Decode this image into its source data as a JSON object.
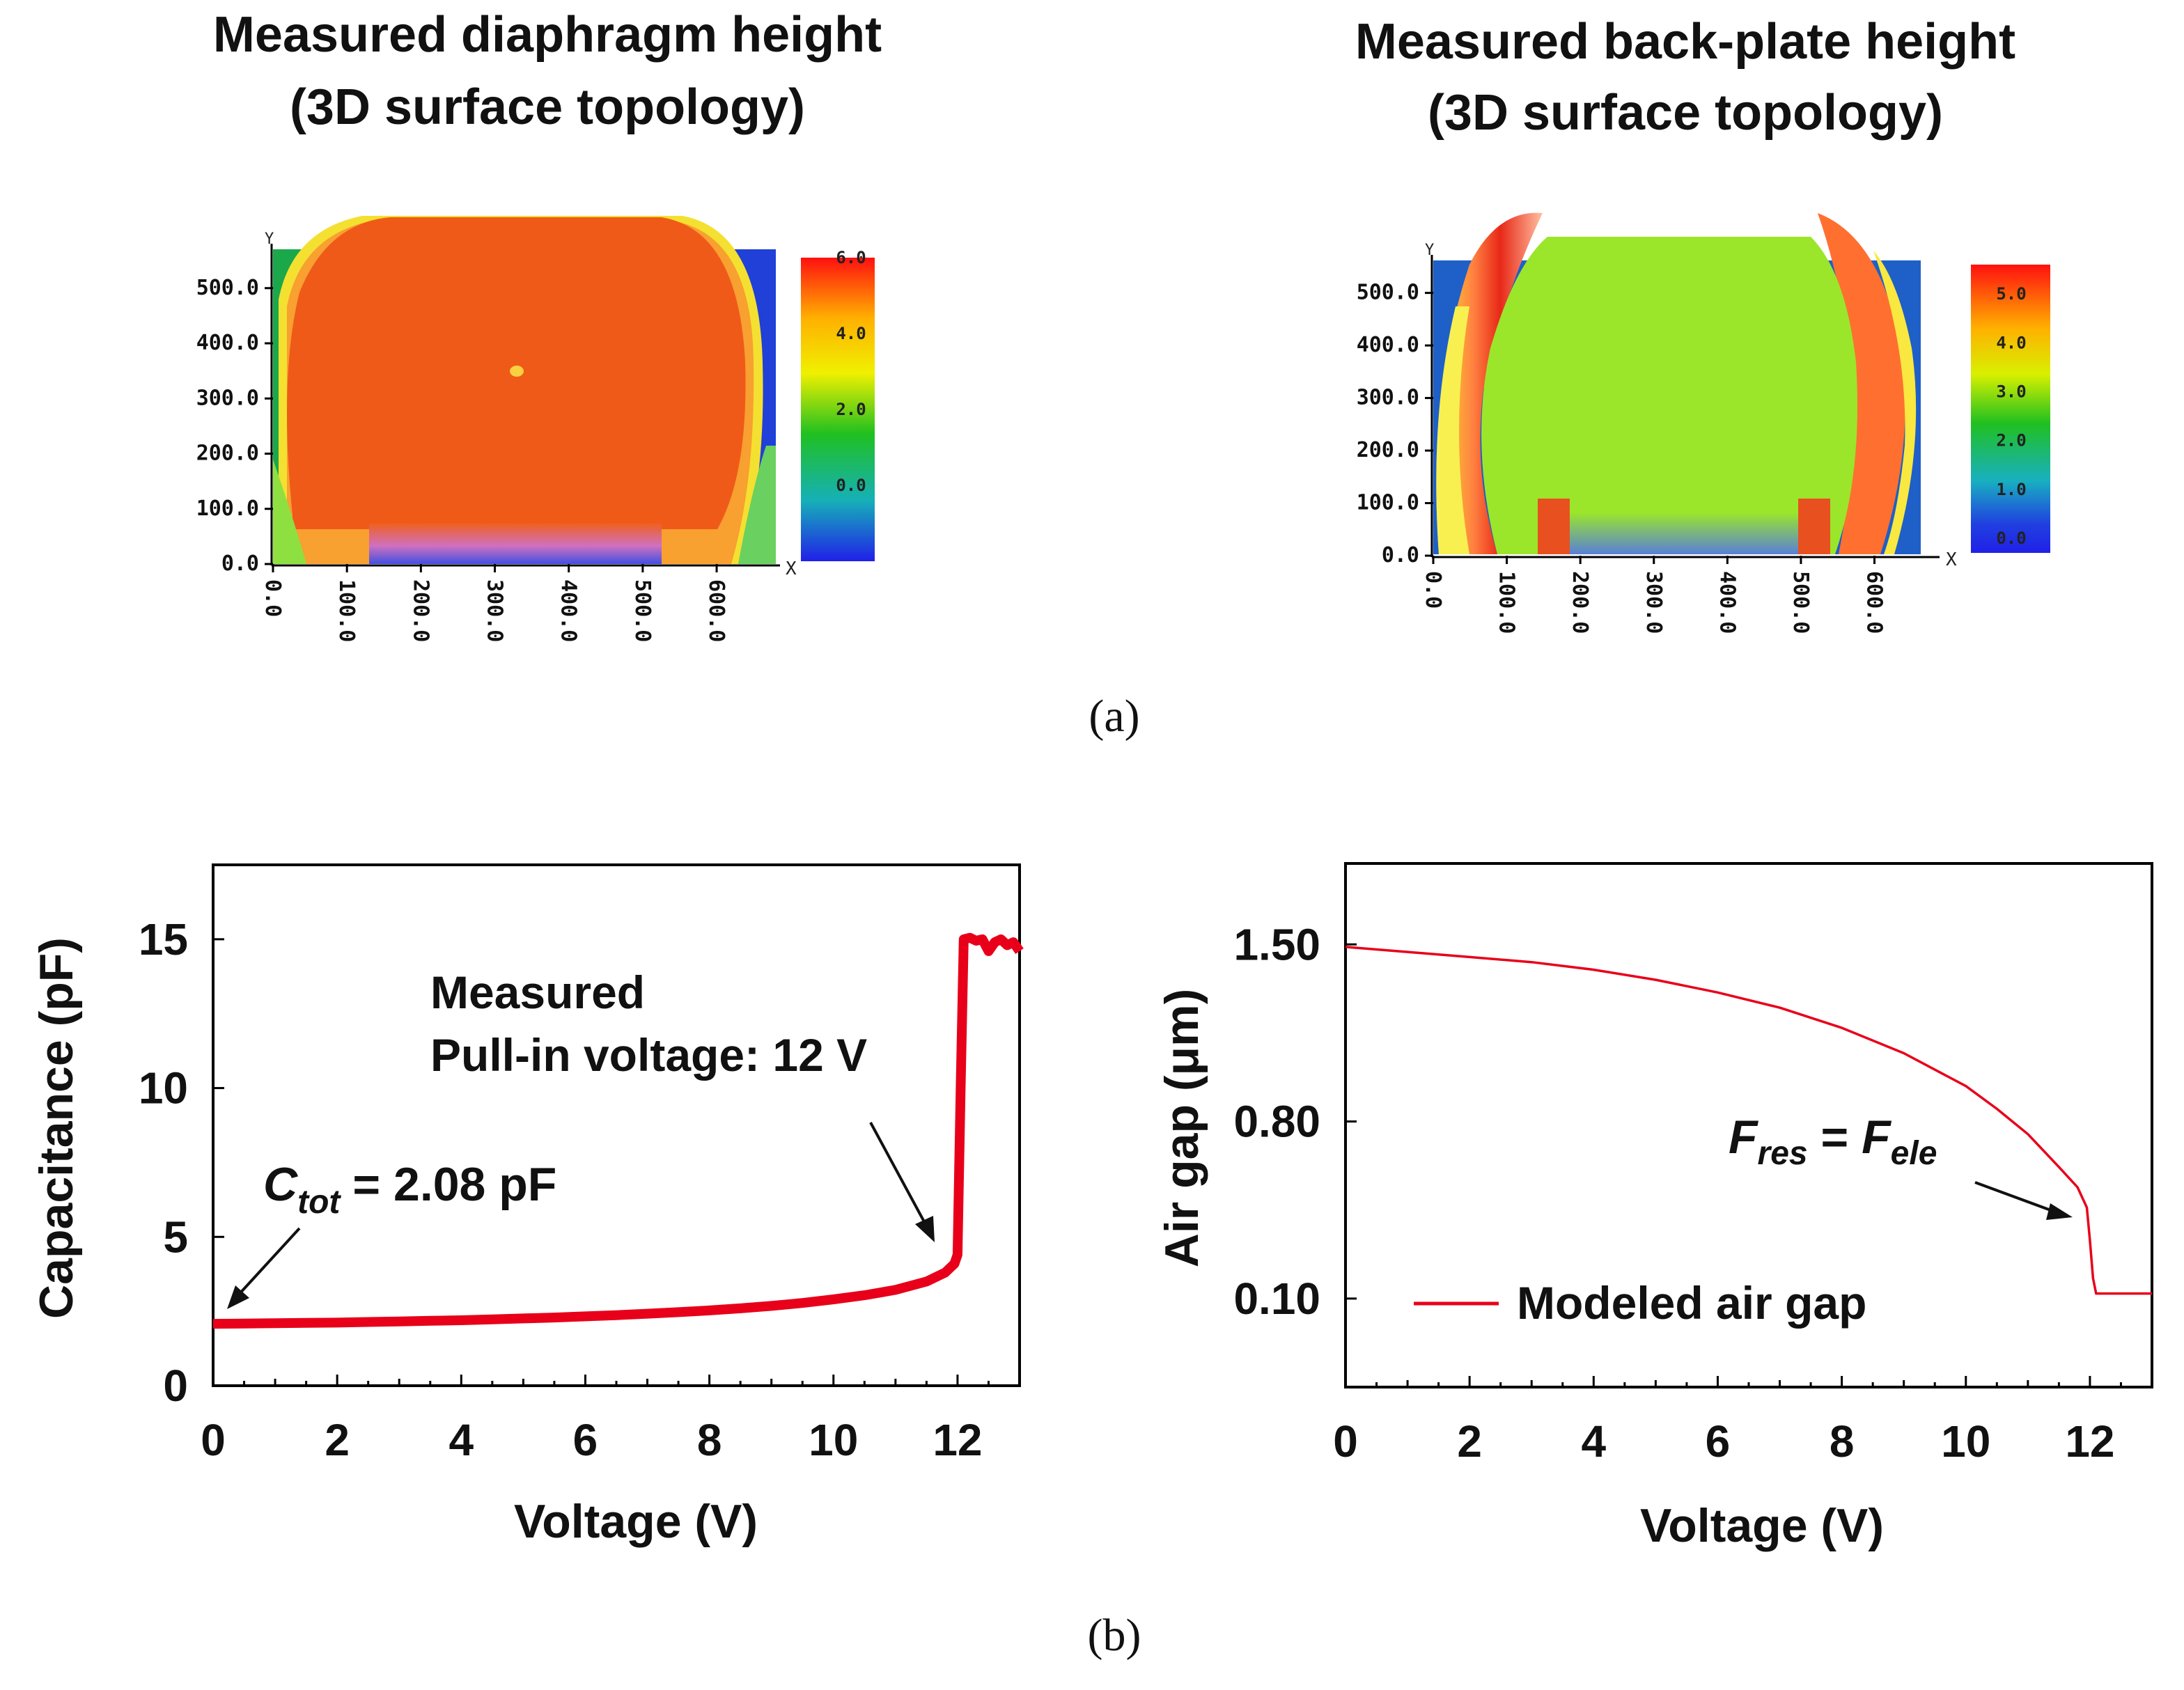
{
  "panel_labels": {
    "a": "(a)",
    "b": "(b)"
  },
  "chart_data": [
    {
      "type": "heatmap",
      "title_line1": "Measured diaphragm height",
      "title_line2": "(3D surface topology)",
      "x_axis_letter": "X",
      "y_axis_letter": "Y",
      "xticks": [
        "0.0",
        "100.0",
        "200.0",
        "300.0",
        "400.0",
        "500.0",
        "600.0"
      ],
      "yticks": [
        "0.0",
        "100.0",
        "200.0",
        "300.0",
        "400.0",
        "500.0"
      ],
      "colorbar_ticks": [
        "0.0",
        "2.0",
        "4.0",
        "6.0"
      ],
      "xlim": [
        0,
        680
      ],
      "ylim": [
        0,
        530
      ],
      "colorbar_range": [
        -2.0,
        6.0
      ],
      "colors": {
        "surface": "#f05a18",
        "background": "#1aa84a",
        "low": "#2040e0"
      }
    },
    {
      "type": "heatmap",
      "title_line1": "Measured back-plate height",
      "title_line2": "(3D surface topology)",
      "x_axis_letter": "X",
      "y_axis_letter": "Y",
      "xticks": [
        "0.0",
        "100.0",
        "200.0",
        "300.0",
        "400.0",
        "500.0",
        "600.0"
      ],
      "yticks": [
        "0.0",
        "100.0",
        "200.0",
        "300.0",
        "400.0",
        "500.0"
      ],
      "colorbar_ticks": [
        "0.0",
        "1.0",
        "2.0",
        "3.0",
        "4.0",
        "5.0"
      ],
      "xlim": [
        0,
        680
      ],
      "ylim": [
        0,
        530
      ],
      "colorbar_range": [
        -0.3,
        5.6
      ],
      "colors": {
        "surface": "#9be62a",
        "background": "#1f5fc8",
        "rim": "#e8301a"
      }
    },
    {
      "type": "line",
      "xlabel": "Voltage (V)",
      "ylabel": "Capacitance (pF)",
      "xlim": [
        0,
        13
      ],
      "ylim": [
        0,
        17.5
      ],
      "xticks": [
        0,
        2,
        4,
        6,
        8,
        10,
        12
      ],
      "yticks": [
        0,
        5,
        10,
        15
      ],
      "color": "#e8001a",
      "annotation_line1": "Measured",
      "annotation_line2": "Pull-in voltage: 12 V",
      "annotation_ctot": "= 2.08 pF",
      "ctot_symbol": "C",
      "ctot_sub": "tot",
      "series": [
        {
          "x": [
            0,
            0.5,
            1,
            1.5,
            2,
            2.5,
            3,
            3.5,
            4,
            4.5,
            5,
            5.5,
            6,
            6.5,
            7,
            7.5,
            8,
            8.5,
            9,
            9.5,
            10,
            10.5,
            11,
            11.5,
            11.8,
            11.95,
            12.0,
            12.05,
            12.1,
            12.2,
            12.3,
            12.4,
            12.5,
            12.6,
            12.7,
            12.8,
            12.9,
            13.0
          ],
          "y": [
            2.08,
            2.09,
            2.1,
            2.11,
            2.12,
            2.14,
            2.16,
            2.18,
            2.2,
            2.23,
            2.26,
            2.29,
            2.33,
            2.37,
            2.42,
            2.47,
            2.53,
            2.6,
            2.68,
            2.78,
            2.9,
            3.04,
            3.22,
            3.5,
            3.8,
            4.1,
            4.4,
            10.0,
            15.0,
            15.05,
            14.95,
            15.0,
            14.6,
            14.9,
            15.0,
            14.8,
            14.9,
            14.6
          ]
        }
      ]
    },
    {
      "type": "line",
      "xlabel": "Voltage (V)",
      "ylabel": "Air gap (μm)",
      "xlim": [
        0,
        13
      ],
      "ylim": [
        -0.25,
        1.82
      ],
      "xticks": [
        0,
        2,
        4,
        6,
        8,
        10,
        12
      ],
      "ytick_labels": [
        "0.10",
        "0.80",
        "1.50"
      ],
      "ytick_values": [
        0.1,
        0.8,
        1.5
      ],
      "color": "#e8001a",
      "legend": "Modeled air gap",
      "legend_position": "lower-left",
      "annotation_F": "F",
      "annotation_res": "res",
      "annotation_eq": " = ",
      "annotation_ele": "ele",
      "series": [
        {
          "name": "Modeled air gap",
          "x": [
            0,
            1,
            2,
            3,
            4,
            5,
            6,
            7,
            8,
            9,
            10,
            10.5,
            11,
            11.5,
            11.8,
            11.95,
            12.0,
            12.05,
            12.1,
            12.3,
            12.6,
            13.0
          ],
          "y": [
            1.49,
            1.47,
            1.45,
            1.43,
            1.4,
            1.36,
            1.31,
            1.25,
            1.17,
            1.07,
            0.94,
            0.85,
            0.75,
            0.62,
            0.54,
            0.46,
            0.33,
            0.18,
            0.12,
            0.12,
            0.12,
            0.12
          ]
        }
      ]
    }
  ]
}
